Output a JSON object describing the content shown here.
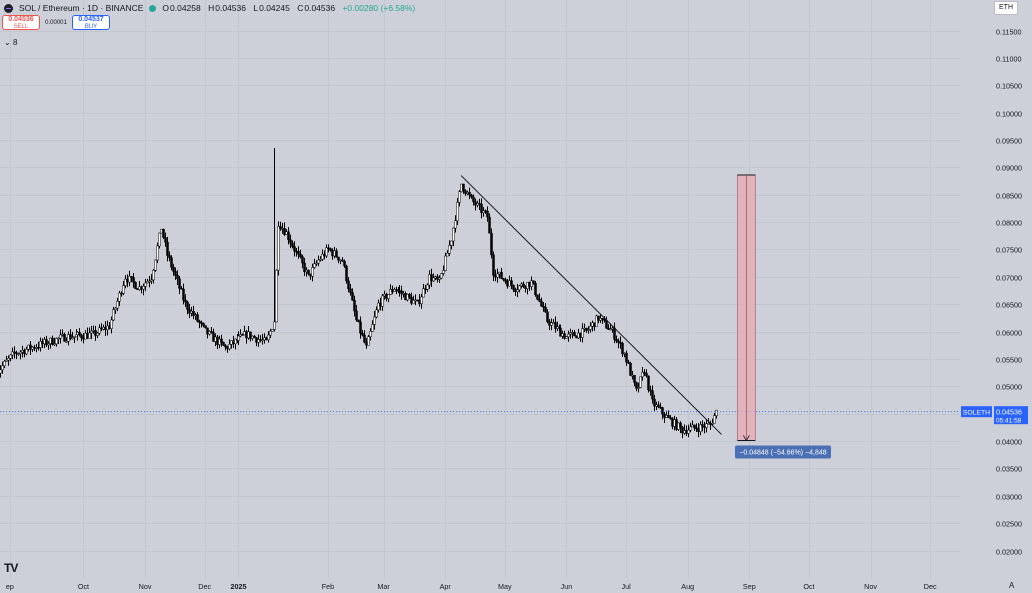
{
  "header": {
    "title": "SOL / Ethereum · 1D · BINANCE",
    "ohlc": [
      {
        "label": "O",
        "value": "0.04258"
      },
      {
        "label": "H",
        "value": "0.04536"
      },
      {
        "label": "L",
        "value": "0.04245"
      },
      {
        "label": "C",
        "value": "0.04536"
      }
    ],
    "change": "+0.00280 (+6.58%)",
    "change_color": "#26a69a"
  },
  "trade": {
    "sell_price": "0.04536",
    "sell_label": "SELL",
    "spread": "0.00001",
    "buy_price": "0.04537",
    "buy_label": "BUY"
  },
  "indicators_toggle": "8",
  "currency": "ETH",
  "logo": "TV",
  "scale_mode": "A",
  "symbol_tag": "SOLETH",
  "last_price": "0.04536",
  "countdown": "05:41:58",
  "measure_label": "−0.04848 (−54.66%) −4,848",
  "colors": {
    "background": "#cdd0d8",
    "price_line": "#2962ff",
    "measure_fill": "#e8aab4",
    "measure_border": "#a05060",
    "label_bg": "#4a6fb5",
    "candles": "#000000"
  },
  "chart_data": {
    "type": "candlestick",
    "title": "SOL / Ethereum · 1D · BINANCE",
    "x_axis_labels": [
      "ep",
      "Oct",
      "Nov",
      "Dec",
      "2025",
      "Feb",
      "Mar",
      "Apr",
      "May",
      "Jun",
      "Jul",
      "Aug",
      "Sep",
      "Oct",
      "Nov",
      "Dec"
    ],
    "x_range": [
      "2024-09-01",
      "2025-12-31"
    ],
    "y_ticks": [
      "0.11500",
      "0.11000",
      "0.10500",
      "0.10000",
      "0.09500",
      "0.09000",
      "0.08500",
      "0.08000",
      "0.07500",
      "0.07000",
      "0.06500",
      "0.06000",
      "0.05500",
      "0.05000",
      "0.04500",
      "0.04000",
      "0.03500",
      "0.03000",
      "0.02500",
      "0.02000"
    ],
    "ylim": [
      0.0165,
      0.1195
    ],
    "price_path": [
      [
        "2024-09-01",
        0.0525
      ],
      [
        "2024-09-10",
        0.056
      ],
      [
        "2024-09-22",
        0.0575
      ],
      [
        "2024-10-05",
        0.059
      ],
      [
        "2024-10-20",
        0.0595
      ],
      [
        "2024-10-28",
        0.061
      ],
      [
        "2024-11-05",
        0.07
      ],
      [
        "2024-11-12",
        0.068
      ],
      [
        "2024-11-18",
        0.07
      ],
      [
        "2024-11-23",
        0.079
      ],
      [
        "2024-11-26",
        0.074
      ],
      [
        "2024-12-05",
        0.065
      ],
      [
        "2024-12-15",
        0.06
      ],
      [
        "2024-12-25",
        0.057
      ],
      [
        "2025-01-05",
        0.0595
      ],
      [
        "2025-01-15",
        0.058
      ],
      [
        "2025-01-19",
        0.062
      ],
      [
        "2025-01-21",
        0.08
      ],
      [
        "2025-01-25",
        0.078
      ],
      [
        "2025-02-05",
        0.07
      ],
      [
        "2025-02-10",
        0.073
      ],
      [
        "2025-02-15",
        0.075
      ],
      [
        "2025-02-22",
        0.073
      ],
      [
        "2025-03-01",
        0.062
      ],
      [
        "2025-03-06",
        0.057
      ],
      [
        "2025-03-12",
        0.065
      ],
      [
        "2025-03-20",
        0.068
      ],
      [
        "2025-04-01",
        0.065
      ],
      [
        "2025-04-07",
        0.07
      ],
      [
        "2025-04-12",
        0.069
      ],
      [
        "2025-04-18",
        0.077
      ],
      [
        "2025-04-23",
        0.087
      ],
      [
        "2025-04-28",
        0.084
      ],
      [
        "2025-05-06",
        0.081
      ],
      [
        "2025-05-09",
        0.071
      ],
      [
        "2025-05-20",
        0.068
      ],
      [
        "2025-05-28",
        0.069
      ],
      [
        "2025-06-05",
        0.062
      ],
      [
        "2025-06-15",
        0.059
      ],
      [
        "2025-06-25",
        0.06
      ],
      [
        "2025-07-01",
        0.0625
      ],
      [
        "2025-07-08",
        0.06
      ],
      [
        "2025-07-14",
        0.056
      ],
      [
        "2025-07-20",
        0.049
      ],
      [
        "2025-07-24",
        0.053
      ],
      [
        "2025-07-28",
        0.047
      ],
      [
        "2025-08-05",
        0.044
      ],
      [
        "2025-08-12",
        0.042
      ],
      [
        "2025-08-20",
        0.0425
      ],
      [
        "2025-08-26",
        0.043
      ],
      [
        "2025-08-29",
        0.04536
      ]
    ],
    "spike": {
      "date": "2025-01-19",
      "high": 0.0935,
      "low": 0.06
    },
    "trendline": {
      "from": [
        "2025-04-23",
        0.0885
      ],
      "to": [
        "2025-09-01",
        0.0412
      ]
    },
    "measure": {
      "from_date": "2025-09-09",
      "to_date": "2025-09-18",
      "top": 0.0886,
      "bottom": 0.0401
    },
    "last_price_line": 0.04536
  }
}
